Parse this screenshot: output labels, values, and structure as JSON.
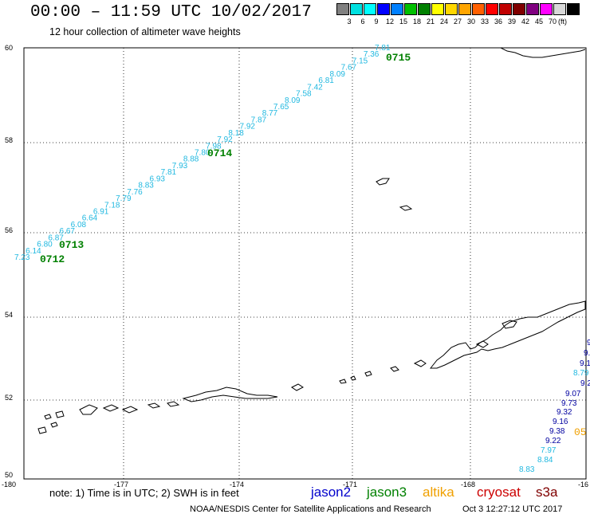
{
  "header": {
    "title": "00:00 – 11:59 UTC 10/02/2017",
    "subtitle": "12 hour collection of altimeter wave heights"
  },
  "legend": {
    "colors": [
      "#808080",
      "#00e0e0",
      "#00ffff",
      "#0000ff",
      "#0080ff",
      "#00c000",
      "#008000",
      "#ffff00",
      "#ffd700",
      "#ffa500",
      "#ff6000",
      "#ff0000",
      "#c00000",
      "#800000",
      "#800080",
      "#ff00ff",
      "#d8d8d8",
      "#000000"
    ],
    "labels": [
      "3",
      "6",
      "9",
      "12",
      "15",
      "18",
      "21",
      "24",
      "27",
      "30",
      "33",
      "36",
      "39",
      "42",
      "45",
      "70"
    ],
    "unit": "(ft)"
  },
  "map": {
    "lat_labels": [
      "60",
      "58",
      "56",
      "54",
      "52",
      "50"
    ],
    "lon_labels": [
      "-180",
      "-177",
      "-174",
      "-171",
      "-168",
      "-16"
    ],
    "track_color_cyan": "#20b8e0",
    "track_color_navy": "#0000a0",
    "time_color_green": "#008000",
    "time_color_orange": "#f0a000",
    "track1": [
      {
        "v": "7.23"
      },
      {
        "v": "6.14"
      },
      {
        "v": "6.80"
      },
      {
        "v": "6.87"
      },
      {
        "v": "6.67"
      },
      {
        "v": "6.08"
      },
      {
        "v": "6.64"
      },
      {
        "v": "6.91"
      },
      {
        "v": "7.18"
      },
      {
        "v": "7.79"
      },
      {
        "v": "7.76"
      },
      {
        "v": "8.83"
      },
      {
        "v": "6.93"
      },
      {
        "v": "7.81"
      },
      {
        "v": "7.93"
      },
      {
        "v": "8.88"
      },
      {
        "v": "7.80"
      },
      {
        "v": "7.98"
      },
      {
        "v": "7.92"
      },
      {
        "v": "8.18"
      },
      {
        "v": "7.92"
      },
      {
        "v": "7.87"
      },
      {
        "v": "8.77"
      },
      {
        "v": "7.65"
      },
      {
        "v": "8.09"
      },
      {
        "v": "7.58"
      },
      {
        "v": "7.42"
      },
      {
        "v": "6.81"
      },
      {
        "v": "8.09"
      },
      {
        "v": "7.67"
      },
      {
        "v": "7.15"
      },
      {
        "v": "7.36"
      },
      {
        "v": "7.81"
      }
    ],
    "track1_times": [
      "0712",
      "0713",
      "0714",
      "0715"
    ],
    "track2_navy": [
      "9.",
      "9.",
      "9.1",
      "9.20",
      "9.07",
      "9.73",
      "9.32",
      "9.16",
      "9.38",
      "9.22"
    ],
    "track2_cyan": [
      "8.79",
      "7.97",
      "8.84",
      "8.83"
    ],
    "track2_time": "05"
  },
  "notes": "note:  1) Time is in UTC;  2) SWH is in feet",
  "missions": [
    {
      "name": "jason2",
      "color": "#0000cc"
    },
    {
      "name": "jason3",
      "color": "#008000"
    },
    {
      "name": "altika",
      "color": "#f0a000"
    },
    {
      "name": "cryosat",
      "color": "#cc0000"
    },
    {
      "name": "s3a",
      "color": "#800000"
    }
  ],
  "footer": {
    "credit": "NOAA/NESDIS Center for Satellite Applications and Research",
    "timestamp": "Oct  3 12:27:12 UTC 2017"
  }
}
